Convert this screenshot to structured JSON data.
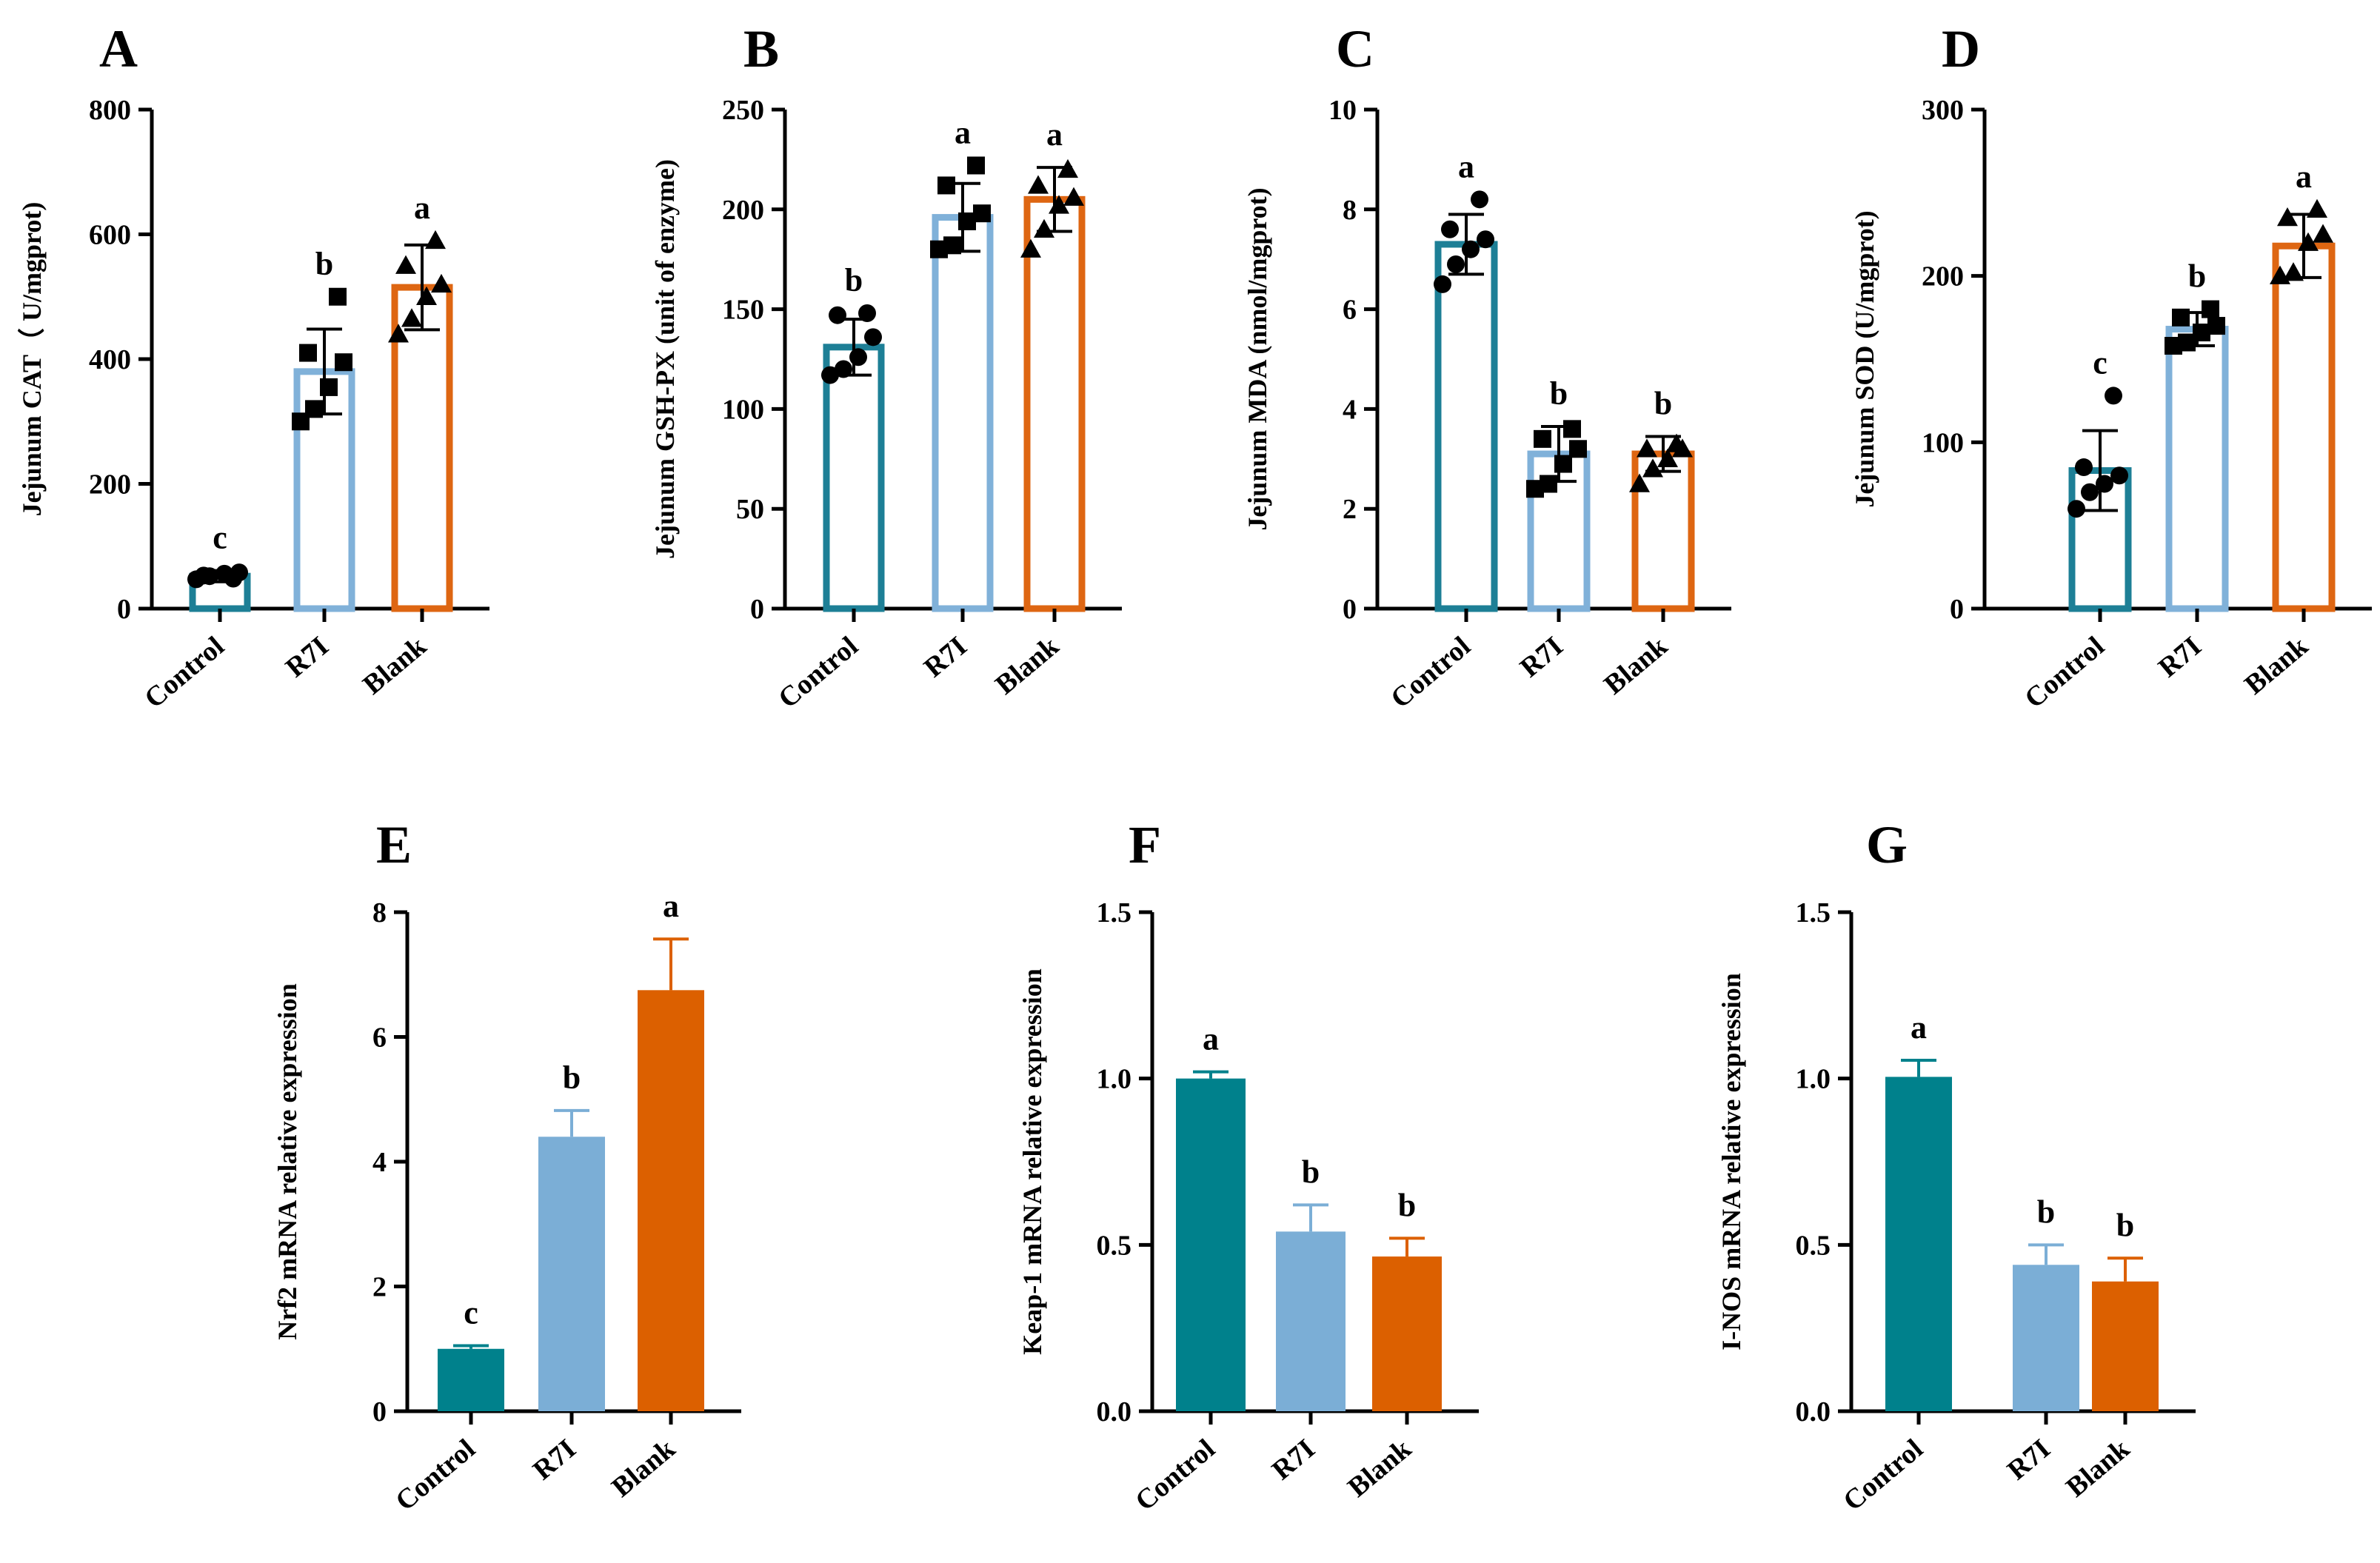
{
  "figure": {
    "panels": [
      {
        "letter": "A",
        "type": "bar",
        "style": "hollow",
        "categories": [
          "Control",
          "R7I",
          "Blank"
        ],
        "ylabel": "Jejunum CAT（ U/mgprot)",
        "ylim": [
          0,
          800
        ],
        "yticks": [
          0,
          200,
          400,
          600,
          800
        ],
        "tick_labels": [
          "0",
          "200",
          "400",
          "600",
          "800"
        ],
        "values": [
          52,
          380,
          515
        ],
        "errors": [
          9,
          68,
          68
        ],
        "sig": [
          "c",
          "b",
          "a"
        ],
        "points": [
          [
            47,
            52,
            56,
            58,
            53,
            48
          ],
          [
            300,
            320,
            355,
            395,
            410,
            500
          ],
          [
            440,
            465,
            500,
            520,
            550,
            590
          ]
        ],
        "markers": [
          "circle",
          "square",
          "triangle"
        ],
        "colors": [
          "#1d7f96",
          "#80b1d9",
          "#de6612"
        ]
      },
      {
        "letter": "B",
        "type": "bar",
        "style": "hollow",
        "categories": [
          "Control",
          "R7I",
          "Blank"
        ],
        "ylabel": "Jejunum GSH-PX (unit of enzyme)",
        "ylim": [
          0,
          250
        ],
        "yticks": [
          0,
          50,
          100,
          150,
          200,
          250
        ],
        "tick_labels": [
          "0",
          "50",
          "100",
          "150",
          "200",
          "250"
        ],
        "values": [
          131,
          196,
          205
        ],
        "errors": [
          14,
          17,
          16
        ],
        "sig": [
          "b",
          "a",
          "a"
        ],
        "points": [
          [
            117,
            120,
            126,
            136,
            147,
            148
          ],
          [
            180,
            182,
            194,
            198,
            212,
            222
          ],
          [
            180,
            190,
            202,
            206,
            212,
            220
          ]
        ],
        "markers": [
          "circle",
          "square",
          "triangle"
        ],
        "colors": [
          "#1d7f96",
          "#80b1d9",
          "#de6612"
        ]
      },
      {
        "letter": "C",
        "type": "bar",
        "style": "hollow",
        "categories": [
          "Control",
          "R7I",
          "Blank"
        ],
        "ylabel": "Jejunum MDA (nmol/mgprot)",
        "ylim": [
          0,
          10
        ],
        "yticks": [
          0,
          2,
          4,
          6,
          8,
          10
        ],
        "tick_labels": [
          "0",
          "2",
          "4",
          "6",
          "8",
          "10"
        ],
        "values": [
          7.3,
          3.1,
          3.1
        ],
        "errors": [
          0.6,
          0.55,
          0.35
        ],
        "sig": [
          "a",
          "b",
          "b"
        ],
        "points": [
          [
            6.5,
            6.9,
            7.2,
            7.4,
            7.6,
            8.2
          ],
          [
            2.4,
            2.5,
            2.9,
            3.2,
            3.4,
            3.6
          ],
          [
            2.5,
            2.8,
            3.0,
            3.2,
            3.2,
            3.3
          ]
        ],
        "markers": [
          "circle",
          "square",
          "triangle"
        ],
        "colors": [
          "#1d7f96",
          "#80b1d9",
          "#de6612"
        ]
      },
      {
        "letter": "D",
        "type": "bar",
        "style": "hollow",
        "categories": [
          "Control",
          "R7I",
          "Blank"
        ],
        "ylabel": "Jejunum SOD (U/mgprot)",
        "ylim": [
          0,
          300
        ],
        "yticks": [
          0,
          100,
          200,
          300
        ],
        "tick_labels": [
          "0",
          "100",
          "200",
          "300"
        ],
        "values": [
          83,
          168,
          218
        ],
        "errors": [
          24,
          10,
          19
        ],
        "sig": [
          "c",
          "b",
          "a"
        ],
        "points": [
          [
            60,
            70,
            75,
            80,
            85,
            128
          ],
          [
            158,
            160,
            166,
            170,
            175,
            180
          ],
          [
            200,
            202,
            220,
            225,
            235,
            240
          ]
        ],
        "markers": [
          "circle",
          "square",
          "triangle"
        ],
        "colors": [
          "#1d7f96",
          "#80b1d9",
          "#de6612"
        ]
      },
      {
        "letter": "E",
        "type": "bar",
        "style": "filled",
        "categories": [
          "Control",
          "R7I",
          "Blank"
        ],
        "ylabel": "Nrf2 mRNA relative expression",
        "ylim": [
          0,
          8
        ],
        "yticks": [
          0,
          2,
          4,
          6,
          8
        ],
        "tick_labels": [
          "0",
          "2",
          "4",
          "6",
          "8"
        ],
        "values": [
          1.0,
          4.4,
          6.75
        ],
        "errors": [
          0.05,
          0.42,
          0.82
        ],
        "sig": [
          "c",
          "b",
          "a"
        ],
        "colors": [
          "#00818c",
          "#7baed6",
          "#dc6000"
        ]
      },
      {
        "letter": "F",
        "type": "bar",
        "style": "filled",
        "categories": [
          "Control",
          "R7I",
          "Blank"
        ],
        "ylabel": "Keap-1 mRNA relative expression",
        "ylim": [
          0,
          1.5
        ],
        "yticks": [
          0,
          0.5,
          1.0,
          1.5
        ],
        "tick_labels": [
          "0.0",
          "0.5",
          "1.0",
          "1.5"
        ],
        "values": [
          1.0,
          0.54,
          0.465
        ],
        "errors": [
          0.02,
          0.08,
          0.055
        ],
        "sig": [
          "a",
          "b",
          "b"
        ],
        "colors": [
          "#00818c",
          "#7baed6",
          "#dc6000"
        ]
      },
      {
        "letter": "G",
        "type": "bar",
        "style": "filled",
        "categories": [
          "Control",
          "R7I",
          "Blank"
        ],
        "ylabel": "I-NOS mRNA relative expression",
        "ylim": [
          0,
          1.5
        ],
        "yticks": [
          0,
          0.5,
          1.0,
          1.5
        ],
        "tick_labels": [
          "0.0",
          "0.5",
          "1.0",
          "1.5"
        ],
        "values": [
          1.005,
          0.44,
          0.39
        ],
        "errors": [
          0.05,
          0.06,
          0.07
        ],
        "sig": [
          "a",
          "b",
          "b"
        ],
        "colors": [
          "#00818c",
          "#7baed6",
          "#dc6000"
        ]
      }
    ]
  }
}
